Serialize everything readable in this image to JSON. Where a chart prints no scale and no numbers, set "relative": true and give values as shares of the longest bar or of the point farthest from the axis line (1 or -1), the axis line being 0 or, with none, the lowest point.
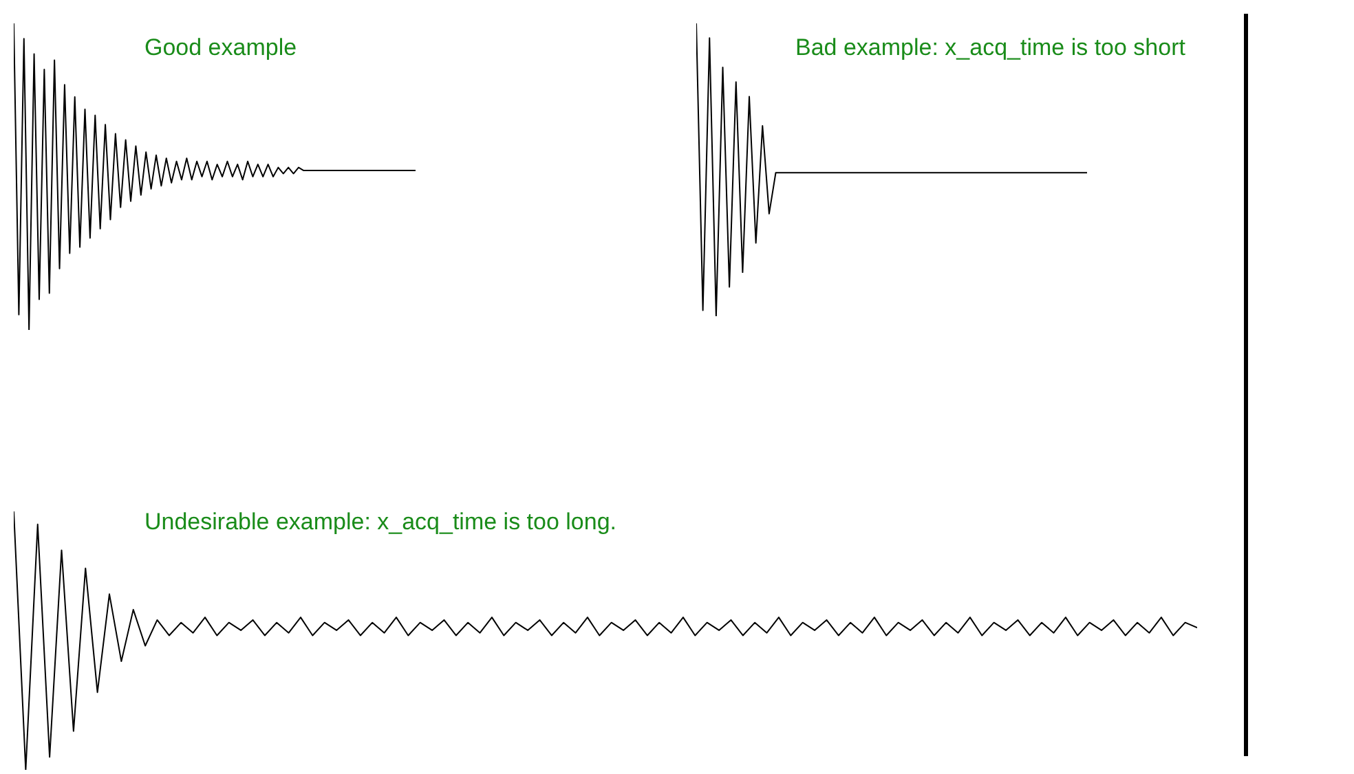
{
  "chart_data": [
    {
      "type": "line",
      "title": "Good example",
      "relative": true,
      "marker": "none",
      "categories": [
        null,
        null,
        null,
        null,
        null,
        null,
        null,
        null,
        null,
        null,
        null,
        null,
        null,
        null,
        null,
        null,
        null,
        null,
        null,
        null,
        null,
        null,
        null,
        null,
        null,
        null,
        null,
        null,
        null,
        null,
        null,
        null,
        null,
        null,
        null,
        null,
        null,
        null,
        null,
        null,
        null,
        null,
        null,
        null,
        null,
        null,
        null,
        null,
        null,
        null,
        null,
        null,
        null,
        null,
        null,
        null,
        null,
        null,
        null,
        null,
        null,
        null,
        null,
        null,
        null,
        null,
        null,
        null,
        null,
        null,
        null,
        null,
        null,
        null,
        null,
        null,
        null,
        null,
        null,
        null
      ],
      "series": [
        {
          "color": "#000000",
          "values": [
            1,
            0.05,
            0.95,
            0,
            0.9,
            0.1,
            0.85,
            0.12,
            0.88,
            0.2,
            0.8,
            0.25,
            0.76,
            0.27,
            0.72,
            0.3,
            0.7,
            0.33,
            0.67,
            0.36,
            0.64,
            0.4,
            0.62,
            0.42,
            0.6,
            0.44,
            0.58,
            0.46,
            0.57,
            0.47,
            0.56,
            0.48,
            0.55,
            0.49,
            0.56,
            0.49,
            0.55,
            0.5,
            0.55,
            0.49,
            0.54,
            0.5,
            0.55,
            0.5,
            0.54,
            0.49,
            0.55,
            0.5,
            0.54,
            0.5,
            0.54,
            0.5,
            0.53,
            0.51,
            0.53,
            0.51,
            0.53,
            0.52,
            0.52,
            0.52,
            0.52,
            0.52,
            0.52,
            0.52,
            0.52,
            0.52,
            0.52,
            0.52,
            0.52,
            0.52,
            0.52,
            0.52,
            0.52,
            0.52,
            0.52,
            0.52,
            0.52,
            0.52,
            0.52,
            0.52
          ]
        }
      ]
    },
    {
      "type": "line",
      "title": "Bad example: x_acq_time is too short",
      "relative": true,
      "marker": "none",
      "categories": [
        null,
        null,
        null,
        null,
        null,
        null,
        null,
        null,
        null,
        null,
        null,
        null,
        null,
        null,
        null,
        null,
        null,
        null,
        null,
        null,
        null,
        null,
        null,
        null,
        null,
        null,
        null,
        null,
        null,
        null,
        null,
        null,
        null,
        null,
        null,
        null,
        null,
        null,
        null,
        null,
        null,
        null,
        null,
        null,
        null,
        null,
        null,
        null,
        null,
        null,
        null,
        null,
        null,
        null,
        null,
        null,
        null,
        null,
        null,
        null
      ],
      "series": [
        {
          "color": "#000000",
          "values": [
            1,
            0.02,
            0.95,
            0,
            0.85,
            0.1,
            0.8,
            0.15,
            0.75,
            0.25,
            0.65,
            0.35,
            0.49,
            0.49,
            0.49,
            0.49,
            0.49,
            0.49,
            0.49,
            0.49,
            0.49,
            0.49,
            0.49,
            0.49,
            0.49,
            0.49,
            0.49,
            0.49,
            0.49,
            0.49,
            0.49,
            0.49,
            0.49,
            0.49,
            0.49,
            0.49,
            0.49,
            0.49,
            0.49,
            0.49,
            0.49,
            0.49,
            0.49,
            0.49,
            0.49,
            0.49,
            0.49,
            0.49,
            0.49,
            0.49,
            0.49,
            0.49,
            0.49,
            0.49,
            0.49,
            0.49,
            0.49,
            0.49,
            0.49,
            0.49
          ]
        }
      ]
    },
    {
      "type": "line",
      "title": "Undesirable example: x_acq_time is too long.",
      "relative": true,
      "marker": "none",
      "categories": [
        null,
        null,
        null,
        null,
        null,
        null,
        null,
        null,
        null,
        null,
        null,
        null,
        null,
        null,
        null,
        null,
        null,
        null,
        null,
        null,
        null,
        null,
        null,
        null,
        null,
        null,
        null,
        null,
        null,
        null,
        null,
        null,
        null,
        null,
        null,
        null,
        null,
        null,
        null,
        null,
        null,
        null,
        null,
        null,
        null,
        null,
        null,
        null,
        null,
        null,
        null,
        null,
        null,
        null,
        null,
        null,
        null,
        null,
        null,
        null,
        null,
        null,
        null,
        null,
        null,
        null,
        null,
        null,
        null,
        null,
        null,
        null,
        null,
        null,
        null,
        null,
        null,
        null,
        null,
        null,
        null,
        null,
        null,
        null,
        null,
        null,
        null,
        null,
        null,
        null,
        null,
        null,
        null,
        null,
        null,
        null,
        null,
        null,
        null,
        null
      ],
      "series": [
        {
          "color": "#000000",
          "values": [
            1,
            0,
            0.95,
            0.05,
            0.85,
            0.15,
            0.78,
            0.3,
            0.68,
            0.42,
            0.62,
            0.48,
            0.58,
            0.52,
            0.57,
            0.53,
            0.59,
            0.52,
            0.57,
            0.54,
            0.58,
            0.52,
            0.57,
            0.53,
            0.59,
            0.52,
            0.57,
            0.54,
            0.58,
            0.52,
            0.57,
            0.53,
            0.59,
            0.52,
            0.57,
            0.54,
            0.58,
            0.52,
            0.57,
            0.53,
            0.59,
            0.52,
            0.57,
            0.54,
            0.58,
            0.52,
            0.57,
            0.53,
            0.59,
            0.52,
            0.57,
            0.54,
            0.58,
            0.52,
            0.57,
            0.53,
            0.59,
            0.52,
            0.57,
            0.54,
            0.58,
            0.52,
            0.57,
            0.53,
            0.59,
            0.52,
            0.57,
            0.54,
            0.58,
            0.52,
            0.57,
            0.53,
            0.59,
            0.52,
            0.57,
            0.54,
            0.58,
            0.52,
            0.57,
            0.53,
            0.59,
            0.52,
            0.57,
            0.54,
            0.58,
            0.52,
            0.57,
            0.53,
            0.59,
            0.52,
            0.57,
            0.54,
            0.58,
            0.52,
            0.57,
            0.53,
            0.59,
            0.52,
            0.57,
            0.55
          ]
        }
      ]
    }
  ]
}
